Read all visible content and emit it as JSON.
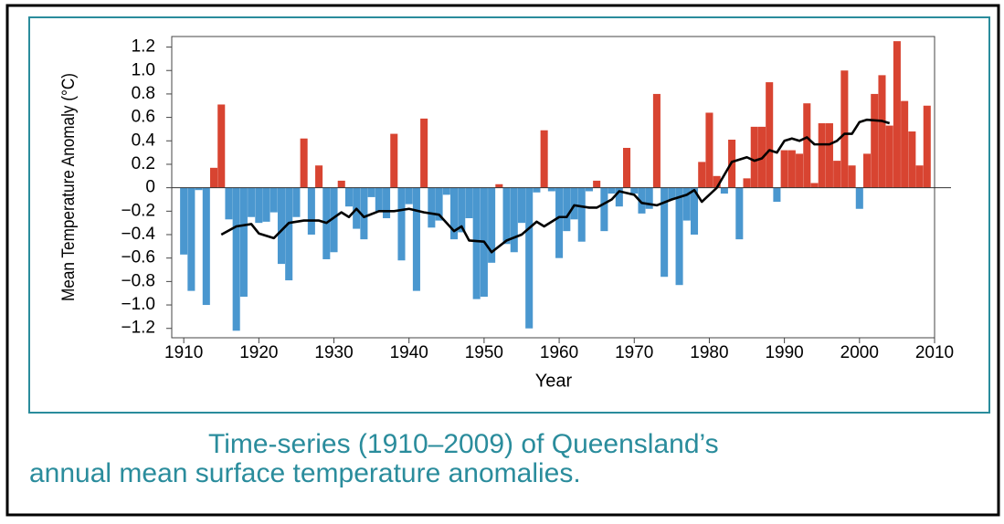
{
  "chart_data": {
    "type": "bar",
    "y_label": "Mean Temperature Anomaly (°C)",
    "x_label": "Year",
    "caption": [
      "Time-series (1910–2009) of Queensland’s",
      "annual mean surface temperature anomalies."
    ],
    "xlim": [
      1908.4,
      2010
    ],
    "ylim": [
      -1.28,
      1.29
    ],
    "xticks": [
      1910,
      1920,
      1930,
      1940,
      1950,
      1960,
      1970,
      1980,
      1990,
      2000,
      2010
    ],
    "yticks": [
      {
        "value": 1.2,
        "label": "1.2"
      },
      {
        "value": 1.0,
        "label": "1.0"
      },
      0.8,
      0.6,
      0.4,
      0.2,
      0,
      {
        "value": -0.2,
        "label": "−0.2"
      },
      {
        "value": -0.4,
        "label": "−0.4"
      },
      {
        "value": -0.6,
        "label": "−0.6"
      },
      {
        "value": -0.8,
        "label": "−0.8"
      },
      {
        "value": -1.0,
        "label": "−1.0"
      },
      {
        "value": -1.2,
        "label": "−1.2"
      }
    ],
    "positive_color": "#d84431",
    "negative_color": "#4a97cf",
    "x": [
      1910,
      1911,
      1912,
      1913,
      1914,
      1915,
      1916,
      1917,
      1918,
      1919,
      1920,
      1921,
      1922,
      1923,
      1924,
      1925,
      1926,
      1927,
      1928,
      1929,
      1930,
      1931,
      1932,
      1933,
      1934,
      1935,
      1936,
      1937,
      1938,
      1939,
      1940,
      1941,
      1942,
      1943,
      1944,
      1945,
      1946,
      1947,
      1948,
      1949,
      1950,
      1951,
      1952,
      1953,
      1954,
      1955,
      1956,
      1957,
      1958,
      1959,
      1960,
      1961,
      1962,
      1963,
      1964,
      1965,
      1966,
      1967,
      1968,
      1969,
      1970,
      1971,
      1972,
      1973,
      1974,
      1975,
      1976,
      1977,
      1978,
      1979,
      1980,
      1981,
      1982,
      1983,
      1984,
      1985,
      1986,
      1987,
      1988,
      1989,
      1990,
      1991,
      1992,
      1993,
      1994,
      1995,
      1996,
      1997,
      1998,
      1999,
      2000,
      2001,
      2002,
      2003,
      2004,
      2005,
      2006,
      2007,
      2008,
      2009
    ],
    "series": [
      {
        "type": "bar",
        "values": [
          -0.57,
          -0.88,
          -0.02,
          -1.0,
          0.17,
          0.71,
          -0.27,
          -1.22,
          -0.93,
          -0.25,
          -0.3,
          -0.29,
          -0.21,
          -0.65,
          -0.79,
          -0.25,
          0.42,
          -0.4,
          0.19,
          -0.61,
          -0.55,
          0.06,
          -0.16,
          -0.35,
          -0.44,
          -0.08,
          -0.2,
          -0.26,
          0.46,
          -0.62,
          -0.14,
          -0.88,
          0.59,
          -0.34,
          -0.28,
          -0.06,
          -0.44,
          -0.38,
          -0.26,
          -0.95,
          -0.93,
          -0.64,
          0.03,
          -0.48,
          -0.55,
          -0.3,
          -1.2,
          -0.04,
          0.49,
          -0.03,
          -0.6,
          -0.37,
          -0.27,
          -0.46,
          -0.03,
          0.06,
          -0.37,
          -0.05,
          -0.16,
          0.34,
          -0.05,
          -0.22,
          -0.18,
          0.8,
          -0.76,
          -0.1,
          -0.83,
          -0.28,
          -0.4,
          0.22,
          0.64,
          0.1,
          -0.05,
          0.41,
          -0.44,
          0.08,
          0.52,
          0.52,
          0.9,
          -0.12,
          0.32,
          0.32,
          0.29,
          0.72,
          0.04,
          0.55,
          0.55,
          0.23,
          1.0,
          0.19,
          -0.18,
          0.29,
          0.8,
          0.96,
          0.53,
          1.25,
          0.74,
          0.48,
          0.19,
          0.7
        ]
      },
      {
        "type": "line",
        "color": "#000000",
        "x": [
          1915,
          1917,
          1919,
          1920,
          1922,
          1924,
          1926,
          1928,
          1929,
          1931,
          1932,
          1933,
          1934,
          1936,
          1938,
          1940,
          1942,
          1944,
          1946,
          1947,
          1948,
          1950,
          1951,
          1953,
          1955,
          1957,
          1958,
          1960,
          1961,
          1962,
          1964,
          1965,
          1967,
          1968,
          1970,
          1971,
          1973,
          1975,
          1977,
          1978,
          1979,
          1981,
          1983,
          1985,
          1986,
          1987,
          1988,
          1989,
          1990,
          1991,
          1992,
          1993,
          1994,
          1996,
          1997,
          1998,
          1999,
          2000,
          2001,
          2003,
          2004
        ],
        "values": [
          -0.4,
          -0.33,
          -0.31,
          -0.39,
          -0.43,
          -0.3,
          -0.28,
          -0.28,
          -0.3,
          -0.21,
          -0.25,
          -0.18,
          -0.25,
          -0.2,
          -0.2,
          -0.18,
          -0.21,
          -0.23,
          -0.37,
          -0.33,
          -0.45,
          -0.46,
          -0.55,
          -0.45,
          -0.4,
          -0.29,
          -0.33,
          -0.25,
          -0.25,
          -0.15,
          -0.17,
          -0.17,
          -0.1,
          -0.03,
          -0.06,
          -0.13,
          -0.15,
          -0.1,
          -0.06,
          -0.02,
          -0.12,
          0.0,
          0.22,
          0.26,
          0.23,
          0.25,
          0.32,
          0.3,
          0.4,
          0.42,
          0.4,
          0.43,
          0.37,
          0.37,
          0.4,
          0.46,
          0.46,
          0.56,
          0.58,
          0.57,
          0.55
        ]
      }
    ]
  }
}
